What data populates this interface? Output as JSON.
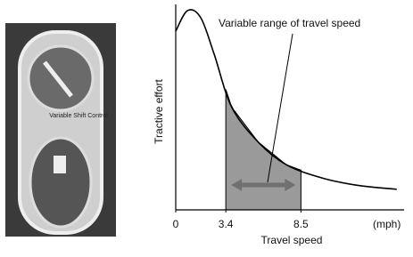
{
  "photo": {
    "label": "Variable Shift Control"
  },
  "chart_data": {
    "type": "line",
    "annotation": "Variable range of travel speed",
    "x_label": "Travel speed",
    "y_label": "Tractive effort",
    "x_unit": "(mph)",
    "x": [
      0,
      0.8,
      1.7,
      2.6,
      3.8,
      5.6,
      7.5,
      9.9,
      12.3,
      15
    ],
    "series": [
      {
        "color": "#000000",
        "values": [
          87,
          97,
          93.5,
          76,
          50,
          33,
          22,
          15.6,
          12,
          10
        ]
      }
    ],
    "xlim": [
      0,
      15.5
    ],
    "ylim": [
      0,
      100
    ],
    "xticks": [
      0,
      3.4,
      8.5
    ],
    "shaded_range": [
      3.4,
      8.5
    ],
    "shade_color": "#9a9a9a",
    "arrow_color": "#707070"
  }
}
